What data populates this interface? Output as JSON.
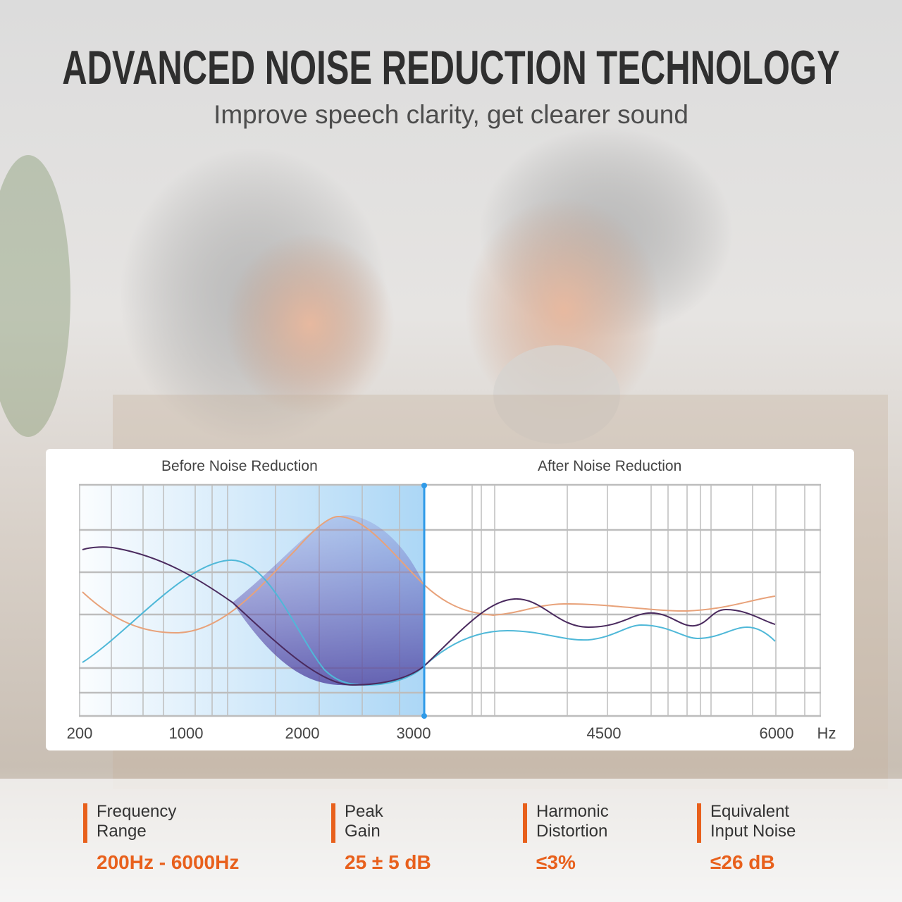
{
  "header": {
    "title": "ADVANCED NOISE REDUCTION TECHNOLOGY",
    "subtitle": "Improve speech clarity, get clearer sound"
  },
  "chart": {
    "before_label": "Before Noise Reduction",
    "after_label": "After Noise Reduction",
    "x_ticks": [
      "200",
      "1000",
      "2000",
      "3000",
      "4500",
      "6000"
    ],
    "x_unit": "Hz",
    "colors": {
      "highlight": "#2f9ae8",
      "purple": "#4a2a5e",
      "orange": "#e8a27a",
      "cyan": "#4fb8d8"
    }
  },
  "specs": [
    {
      "label_line1": "Frequency",
      "label_line2": "Range",
      "value": "200Hz - 6000Hz"
    },
    {
      "label_line1": "Peak",
      "label_line2": "Gain",
      "value": "25 ± 5 dB"
    },
    {
      "label_line1": "Harmonic",
      "label_line2": "Distortion",
      "value": "≤3%"
    },
    {
      "label_line1": "Equivalent",
      "label_line2": "Input Noise",
      "value": "≤26 dB"
    }
  ],
  "accent_color": "#e8601c"
}
